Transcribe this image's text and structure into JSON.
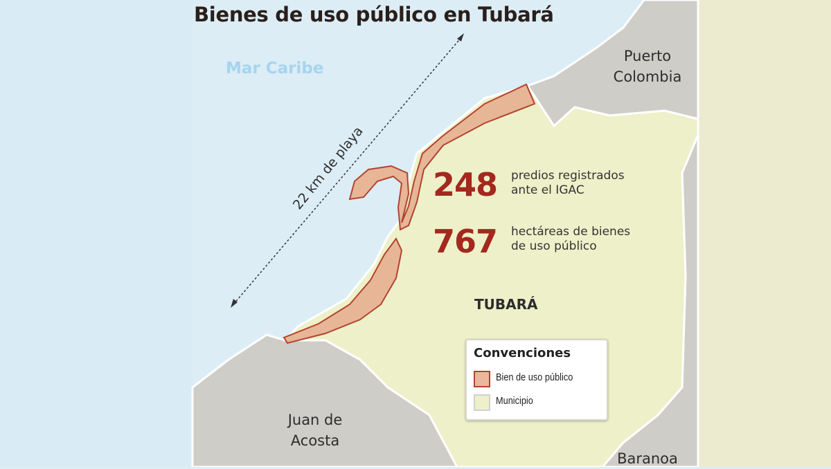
{
  "title": "Bienes de uso público en Tubará",
  "labels": {
    "sea": "Mar Caribe",
    "beach_length": "22 km de playa",
    "municipality": "TUBARÁ",
    "neighbors": [
      "Puerto Colombia",
      "Juan de Acosta",
      "Baranoa"
    ]
  },
  "stats": [
    {
      "value": "248",
      "line1": "predios registrados",
      "line2": "ante el IGAC"
    },
    {
      "value": "767",
      "line1": "hectáreas de bienes",
      "line2": "de uso público"
    }
  ],
  "legend": {
    "title": "Convenciones",
    "items": [
      {
        "label": "Bien de uso público",
        "color": "#eab79c"
      },
      {
        "label": "Municipio",
        "color": "#eef0c9"
      }
    ]
  },
  "colors": {
    "sea": "#dcedf6",
    "neighbor_land": "#cfcdc8",
    "municipio": "#eef0c9",
    "public_good": "#e6b697",
    "public_good_border": "#b2432f",
    "stat_number": "#a3281e"
  }
}
